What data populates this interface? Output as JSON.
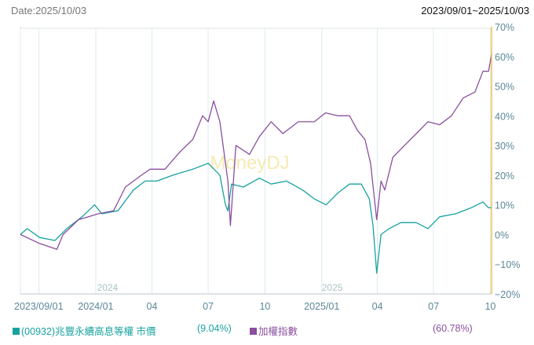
{
  "header": {
    "date_label": "Date:2025/10/03",
    "range_label": "2023/09/01~2025/10/03"
  },
  "chart_data": {
    "type": "line",
    "title": "",
    "x_unit": "days since 2023/09/01",
    "xlim": [
      0,
      763
    ],
    "ylim": [
      -20,
      70
    ],
    "grid": true,
    "watermark": "MoneyDJ",
    "x_ticks": [
      {
        "day": 0,
        "label": "2023/09/01"
      },
      {
        "day": 122,
        "label": "2024/01"
      },
      {
        "day": 213,
        "label": "04"
      },
      {
        "day": 304,
        "label": "07"
      },
      {
        "day": 396,
        "label": "10"
      },
      {
        "day": 488,
        "label": "2025/01"
      },
      {
        "day": 578,
        "label": "04"
      },
      {
        "day": 669,
        "label": "07"
      },
      {
        "day": 761,
        "label": "10"
      }
    ],
    "minor_gridline_days": [
      30
    ],
    "year_labels": [
      {
        "day": 141,
        "label": "2024"
      },
      {
        "day": 505,
        "label": "2025"
      }
    ],
    "y_ticks": [
      70,
      60,
      50,
      40,
      30,
      20,
      10,
      0,
      -10,
      -20
    ],
    "y_tick_labels": [
      "70%",
      "60%",
      "50%",
      "40%",
      "30%",
      "20%",
      "10%",
      "0%",
      "−10%",
      "−20%"
    ],
    "series": [
      {
        "name": "(00932)兆豐永續高息等權 市價",
        "return_label": "(9.04%)",
        "color": "#17a2a0",
        "points": [
          [
            0,
            0
          ],
          [
            11,
            2
          ],
          [
            31,
            -1
          ],
          [
            56,
            -2
          ],
          [
            75,
            2
          ],
          [
            100,
            6
          ],
          [
            120,
            10
          ],
          [
            132,
            7
          ],
          [
            158,
            8
          ],
          [
            183,
            15
          ],
          [
            202,
            18
          ],
          [
            221,
            18
          ],
          [
            247,
            20
          ],
          [
            279,
            22
          ],
          [
            304,
            24
          ],
          [
            323,
            20
          ],
          [
            332,
            10
          ],
          [
            336,
            8
          ],
          [
            342,
            17
          ],
          [
            361,
            16
          ],
          [
            387,
            19
          ],
          [
            406,
            17
          ],
          [
            431,
            18
          ],
          [
            457,
            15
          ],
          [
            476,
            12
          ],
          [
            495,
            10
          ],
          [
            514,
            14
          ],
          [
            533,
            17
          ],
          [
            552,
            17
          ],
          [
            565,
            12
          ],
          [
            571,
            3
          ],
          [
            577,
            -13
          ],
          [
            584,
            0
          ],
          [
            597,
            2
          ],
          [
            616,
            4
          ],
          [
            641,
            4
          ],
          [
            660,
            2
          ],
          [
            679,
            6
          ],
          [
            705,
            7
          ],
          [
            730,
            9
          ],
          [
            749,
            11
          ],
          [
            758,
            9
          ],
          [
            763,
            9.04
          ]
        ]
      },
      {
        "name": "加權指數",
        "return_label": "(60.78%)",
        "color": "#8a4f9e",
        "points": [
          [
            0,
            0
          ],
          [
            31,
            -3
          ],
          [
            59,
            -5
          ],
          [
            69,
            0
          ],
          [
            94,
            5
          ],
          [
            126,
            7
          ],
          [
            151,
            8
          ],
          [
            170,
            16
          ],
          [
            196,
            20
          ],
          [
            210,
            22
          ],
          [
            234,
            22
          ],
          [
            259,
            28
          ],
          [
            279,
            32
          ],
          [
            295,
            40
          ],
          [
            304,
            38
          ],
          [
            313,
            45
          ],
          [
            323,
            38
          ],
          [
            336,
            18
          ],
          [
            340,
            3
          ],
          [
            349,
            30
          ],
          [
            371,
            27
          ],
          [
            387,
            33
          ],
          [
            406,
            38
          ],
          [
            425,
            34
          ],
          [
            450,
            38
          ],
          [
            476,
            38
          ],
          [
            494,
            41
          ],
          [
            514,
            40
          ],
          [
            533,
            40
          ],
          [
            546,
            35
          ],
          [
            558,
            32
          ],
          [
            567,
            24
          ],
          [
            577,
            5
          ],
          [
            584,
            18
          ],
          [
            590,
            15
          ],
          [
            603,
            26
          ],
          [
            622,
            30
          ],
          [
            641,
            34
          ],
          [
            660,
            38
          ],
          [
            679,
            37
          ],
          [
            698,
            40
          ],
          [
            717,
            46
          ],
          [
            736,
            48
          ],
          [
            749,
            55
          ],
          [
            758,
            55
          ],
          [
            763,
            60.78
          ]
        ]
      }
    ]
  }
}
